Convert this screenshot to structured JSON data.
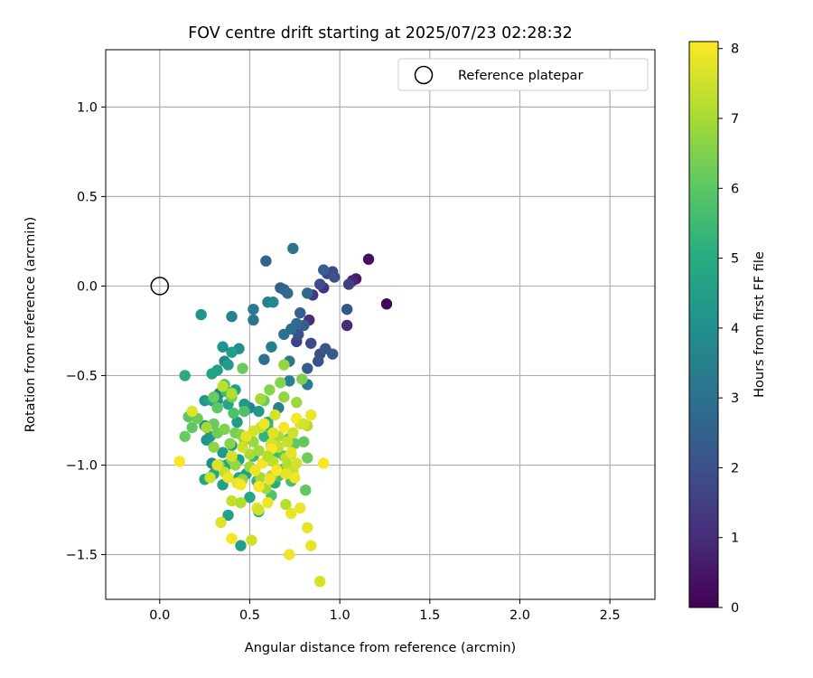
{
  "chart_data": {
    "type": "scatter",
    "title": "FOV centre drift starting at 2025/07/23 02:28:32",
    "xlabel": "Angular distance from reference (arcmin)",
    "ylabel": "Rotation from reference (arcmin)",
    "xlim": [
      -0.3,
      2.75
    ],
    "ylim": [
      -1.75,
      1.32
    ],
    "xticks": [
      0.0,
      0.5,
      1.0,
      1.5,
      2.0,
      2.5
    ],
    "xtick_labels": [
      "0.0",
      "0.5",
      "1.0",
      "1.5",
      "2.0",
      "2.5"
    ],
    "yticks": [
      -1.5,
      -1.0,
      -0.5,
      0.0,
      0.5,
      1.0
    ],
    "ytick_labels": [
      "−1.5",
      "−1.0",
      "−0.5",
      "0.0",
      "0.5",
      "1.0"
    ],
    "grid": true,
    "legend": {
      "position": "top-right",
      "entries": [
        "Reference platepar"
      ]
    },
    "reference_point": {
      "x": 0.0,
      "y": 0.0,
      "marker": "open circle"
    },
    "colorbar": {
      "label": "Hours from first FF file",
      "colormap": "viridis",
      "range": [
        0,
        8.1
      ],
      "ticks": [
        0,
        1,
        2,
        3,
        4,
        5,
        6,
        7,
        8
      ],
      "tick_labels": [
        "0",
        "1",
        "2",
        "3",
        "4",
        "5",
        "6",
        "7",
        "8"
      ]
    },
    "points": [
      [
        1.26,
        -0.1,
        0.1
      ],
      [
        1.16,
        0.15,
        0.3
      ],
      [
        1.09,
        0.04,
        0.6
      ],
      [
        1.07,
        0.03,
        0.8
      ],
      [
        1.04,
        -0.22,
        1.0
      ],
      [
        0.91,
        -0.01,
        1.2
      ],
      [
        0.83,
        -0.19,
        1.1
      ],
      [
        0.85,
        -0.05,
        1.4
      ],
      [
        1.05,
        0.01,
        1.5
      ],
      [
        0.93,
        0.07,
        1.6
      ],
      [
        0.96,
        0.08,
        1.8
      ],
      [
        0.89,
        0.01,
        1.9
      ],
      [
        0.97,
        0.05,
        2.0
      ],
      [
        1.04,
        -0.13,
        2.1
      ],
      [
        0.96,
        -0.38,
        2.2
      ],
      [
        0.76,
        -0.31,
        1.6
      ],
      [
        0.84,
        -0.32,
        1.8
      ],
      [
        0.89,
        -0.38,
        1.9
      ],
      [
        0.88,
        -0.42,
        2.0
      ],
      [
        0.92,
        -0.35,
        2.2
      ],
      [
        0.82,
        -0.46,
        2.3
      ],
      [
        0.77,
        -0.27,
        2.0
      ],
      [
        0.8,
        -0.22,
        2.4
      ],
      [
        0.78,
        -0.15,
        2.5
      ],
      [
        0.76,
        -0.21,
        2.7
      ],
      [
        0.73,
        -0.24,
        2.9
      ],
      [
        0.69,
        -0.27,
        3.0
      ],
      [
        0.67,
        -0.01,
        2.4
      ],
      [
        0.69,
        -0.02,
        2.6
      ],
      [
        0.71,
        -0.04,
        2.8
      ],
      [
        0.82,
        -0.04,
        2.7
      ],
      [
        0.91,
        0.09,
        2.5
      ],
      [
        0.74,
        0.21,
        3.2
      ],
      [
        0.59,
        0.14,
        2.6
      ],
      [
        0.6,
        -0.09,
        3.6
      ],
      [
        0.63,
        -0.09,
        3.8
      ],
      [
        0.52,
        -0.13,
        3.3
      ],
      [
        0.52,
        -0.19,
        3.2
      ],
      [
        0.62,
        -0.34,
        3.5
      ],
      [
        0.72,
        -0.42,
        3.3
      ],
      [
        0.72,
        -0.53,
        3.6
      ],
      [
        0.82,
        -0.55,
        3.4
      ],
      [
        0.58,
        -0.41,
        2.9
      ],
      [
        0.66,
        -0.68,
        3.5
      ],
      [
        0.5,
        -0.68,
        3.7
      ],
      [
        0.4,
        -0.17,
        3.6
      ],
      [
        0.23,
        -0.16,
        4.2
      ],
      [
        0.35,
        -0.34,
        4.2
      ],
      [
        0.36,
        -0.42,
        3.8
      ],
      [
        0.44,
        -0.35,
        4.0
      ],
      [
        0.38,
        -0.44,
        4.4
      ],
      [
        0.4,
        -0.37,
        4.5
      ],
      [
        0.32,
        -0.47,
        4.6
      ],
      [
        0.29,
        -0.49,
        4.7
      ],
      [
        0.14,
        -0.5,
        5.0
      ],
      [
        0.33,
        -0.6,
        3.7
      ],
      [
        0.32,
        -0.64,
        4.1
      ],
      [
        0.25,
        -0.64,
        4.3
      ],
      [
        0.29,
        -0.64,
        4.8
      ],
      [
        0.42,
        -0.58,
        4.6
      ],
      [
        0.38,
        -0.66,
        4.8
      ],
      [
        0.47,
        -0.66,
        4.3
      ],
      [
        0.43,
        -0.76,
        4.5
      ],
      [
        0.25,
        -0.78,
        4.0
      ],
      [
        0.26,
        -0.86,
        4.1
      ],
      [
        0.28,
        -0.84,
        4.3
      ],
      [
        0.29,
        -0.99,
        3.9
      ],
      [
        0.35,
        -0.93,
        4.4
      ],
      [
        0.37,
        -1.0,
        4.6
      ],
      [
        0.3,
        -1.05,
        4.8
      ],
      [
        0.25,
        -1.08,
        4.7
      ],
      [
        0.28,
        -1.07,
        5.0
      ],
      [
        0.35,
        -1.11,
        4.6
      ],
      [
        0.44,
        -1.07,
        4.7
      ],
      [
        0.48,
        -1.05,
        4.5
      ],
      [
        0.4,
        -0.89,
        4.2
      ],
      [
        0.44,
        -0.97,
        4.5
      ],
      [
        0.38,
        -1.28,
        4.6
      ],
      [
        0.45,
        -1.45,
        4.6
      ],
      [
        0.5,
        -1.18,
        4.8
      ],
      [
        0.55,
        -1.26,
        4.9
      ],
      [
        0.64,
        -1.1,
        5.0
      ],
      [
        0.54,
        -1.09,
        5.2
      ],
      [
        0.52,
        -0.95,
        5.2
      ],
      [
        0.55,
        -0.7,
        4.4
      ],
      [
        0.6,
        -0.76,
        5.1
      ],
      [
        0.6,
        -0.78,
        5.4
      ],
      [
        0.58,
        -0.84,
        5.3
      ],
      [
        0.62,
        -0.89,
        5.4
      ],
      [
        0.65,
        -0.93,
        5.5
      ],
      [
        0.61,
        -0.96,
        5.6
      ],
      [
        0.69,
        -0.95,
        5.8
      ],
      [
        0.66,
        -1.06,
        5.7
      ],
      [
        0.69,
        -1.02,
        5.9
      ],
      [
        0.73,
        -1.09,
        5.7
      ],
      [
        0.72,
        -0.85,
        6.0
      ],
      [
        0.75,
        -0.88,
        6.1
      ],
      [
        0.8,
        -0.87,
        6.1
      ],
      [
        0.82,
        -0.96,
        6.3
      ],
      [
        0.81,
        -1.14,
        6.1
      ],
      [
        0.62,
        -1.17,
        5.8
      ],
      [
        0.47,
        -0.7,
        5.8
      ],
      [
        0.41,
        -0.71,
        5.8
      ],
      [
        0.37,
        -0.59,
        5.5
      ],
      [
        0.36,
        -0.55,
        5.9
      ],
      [
        0.4,
        -0.62,
        6.4
      ],
      [
        0.46,
        -0.46,
        6.2
      ],
      [
        0.69,
        -0.44,
        6.8
      ],
      [
        0.61,
        -0.58,
        6.6
      ],
      [
        0.58,
        -0.64,
        6.2
      ],
      [
        0.69,
        -0.62,
        6.8
      ],
      [
        0.76,
        -0.65,
        6.9
      ],
      [
        0.67,
        -0.54,
        6.6
      ],
      [
        0.79,
        -0.52,
        6.5
      ],
      [
        0.3,
        -0.62,
        6.2
      ],
      [
        0.32,
        -0.68,
        6.0
      ],
      [
        0.3,
        -0.77,
        6.2
      ],
      [
        0.16,
        -0.73,
        6.0
      ],
      [
        0.18,
        -0.79,
        6.1
      ],
      [
        0.21,
        -0.74,
        6.3
      ],
      [
        0.14,
        -0.84,
        6.2
      ],
      [
        0.32,
        -0.82,
        6.3
      ],
      [
        0.36,
        -0.8,
        6.5
      ],
      [
        0.42,
        -0.82,
        6.4
      ],
      [
        0.39,
        -0.88,
        6.6
      ],
      [
        0.45,
        -0.83,
        6.6
      ],
      [
        0.47,
        -0.86,
        6.8
      ],
      [
        0.3,
        -0.9,
        6.7
      ],
      [
        0.33,
        -1.0,
        6.5
      ],
      [
        0.4,
        -0.97,
        6.6
      ],
      [
        0.42,
        -1.0,
        6.8
      ],
      [
        0.46,
        -1.08,
        6.7
      ],
      [
        0.5,
        -1.01,
        6.9
      ],
      [
        0.52,
        -0.87,
        6.9
      ],
      [
        0.5,
        -0.94,
        7.1
      ],
      [
        0.55,
        -0.92,
        7.0
      ],
      [
        0.56,
        -1.07,
        7.0
      ],
      [
        0.59,
        -1.13,
        7.0
      ],
      [
        0.62,
        -1.06,
        7.2
      ],
      [
        0.63,
        -0.98,
        7.3
      ],
      [
        0.66,
        -0.84,
        7.1
      ],
      [
        0.66,
        -0.9,
        7.4
      ],
      [
        0.7,
        -0.96,
        7.3
      ],
      [
        0.71,
        -1.0,
        7.2
      ],
      [
        0.73,
        -0.94,
        7.5
      ],
      [
        0.74,
        -1.03,
        7.4
      ],
      [
        0.76,
        -0.99,
        7.6
      ],
      [
        0.71,
        -0.87,
        7.4
      ],
      [
        0.74,
        -0.82,
        7.5
      ],
      [
        0.76,
        -0.74,
        7.4
      ],
      [
        0.78,
        -0.77,
        7.6
      ],
      [
        0.82,
        -0.78,
        7.2
      ],
      [
        0.84,
        -0.72,
        7.9
      ],
      [
        0.56,
        -0.63,
        7.0
      ],
      [
        0.56,
        -0.79,
        7.4
      ],
      [
        0.63,
        -0.82,
        7.7
      ],
      [
        0.62,
        -0.88,
        7.6
      ],
      [
        0.58,
        -0.77,
        7.9
      ],
      [
        0.52,
        -0.81,
        7.6
      ],
      [
        0.48,
        -0.84,
        7.8
      ],
      [
        0.46,
        -0.9,
        7.5
      ],
      [
        0.4,
        -0.95,
        7.6
      ],
      [
        0.36,
        -1.04,
        7.4
      ],
      [
        0.32,
        -1.0,
        7.7
      ],
      [
        0.28,
        -1.07,
        7.5
      ],
      [
        0.38,
        -1.07,
        7.9
      ],
      [
        0.43,
        -1.1,
        7.8
      ],
      [
        0.45,
        -1.11,
        8.0
      ],
      [
        0.53,
        -1.03,
        7.9
      ],
      [
        0.57,
        -0.99,
        8.0
      ],
      [
        0.61,
        -1.08,
        7.9
      ],
      [
        0.65,
        -1.03,
        8.1
      ],
      [
        0.7,
        -1.05,
        7.8
      ],
      [
        0.75,
        -1.07,
        7.9
      ],
      [
        0.73,
        -0.93,
        7.8
      ],
      [
        0.69,
        -0.79,
        8.0
      ],
      [
        0.76,
        -0.74,
        8.0
      ],
      [
        0.8,
        -0.77,
        7.6
      ],
      [
        0.62,
        -0.91,
        8.1
      ],
      [
        0.55,
        -1.12,
        8.0
      ],
      [
        0.6,
        -1.21,
        7.9
      ],
      [
        0.54,
        -1.24,
        7.8
      ],
      [
        0.4,
        -1.41,
        8.0
      ],
      [
        0.34,
        -1.32,
        7.7
      ],
      [
        0.4,
        -1.2,
        7.4
      ],
      [
        0.45,
        -1.21,
        7.2
      ],
      [
        0.51,
        -1.42,
        7.5
      ],
      [
        0.55,
        -1.25,
        7.6
      ],
      [
        0.7,
        -1.22,
        7.2
      ],
      [
        0.73,
        -1.27,
        7.8
      ],
      [
        0.78,
        -1.24,
        7.9
      ],
      [
        0.82,
        -1.35,
        7.8
      ],
      [
        0.72,
        -1.5,
        7.9
      ],
      [
        0.84,
        -1.45,
        7.8
      ],
      [
        0.89,
        -1.65,
        7.6
      ],
      [
        0.91,
        -0.99,
        8.0
      ],
      [
        0.11,
        -0.98,
        8.0
      ],
      [
        0.26,
        -0.79,
        7.0
      ],
      [
        0.18,
        -0.7,
        7.7
      ],
      [
        0.35,
        -0.56,
        7.3
      ],
      [
        0.4,
        -0.6,
        7.2
      ],
      [
        0.64,
        -0.72,
        7.6
      ],
      [
        0.6,
        -0.95,
        7.2
      ]
    ]
  }
}
